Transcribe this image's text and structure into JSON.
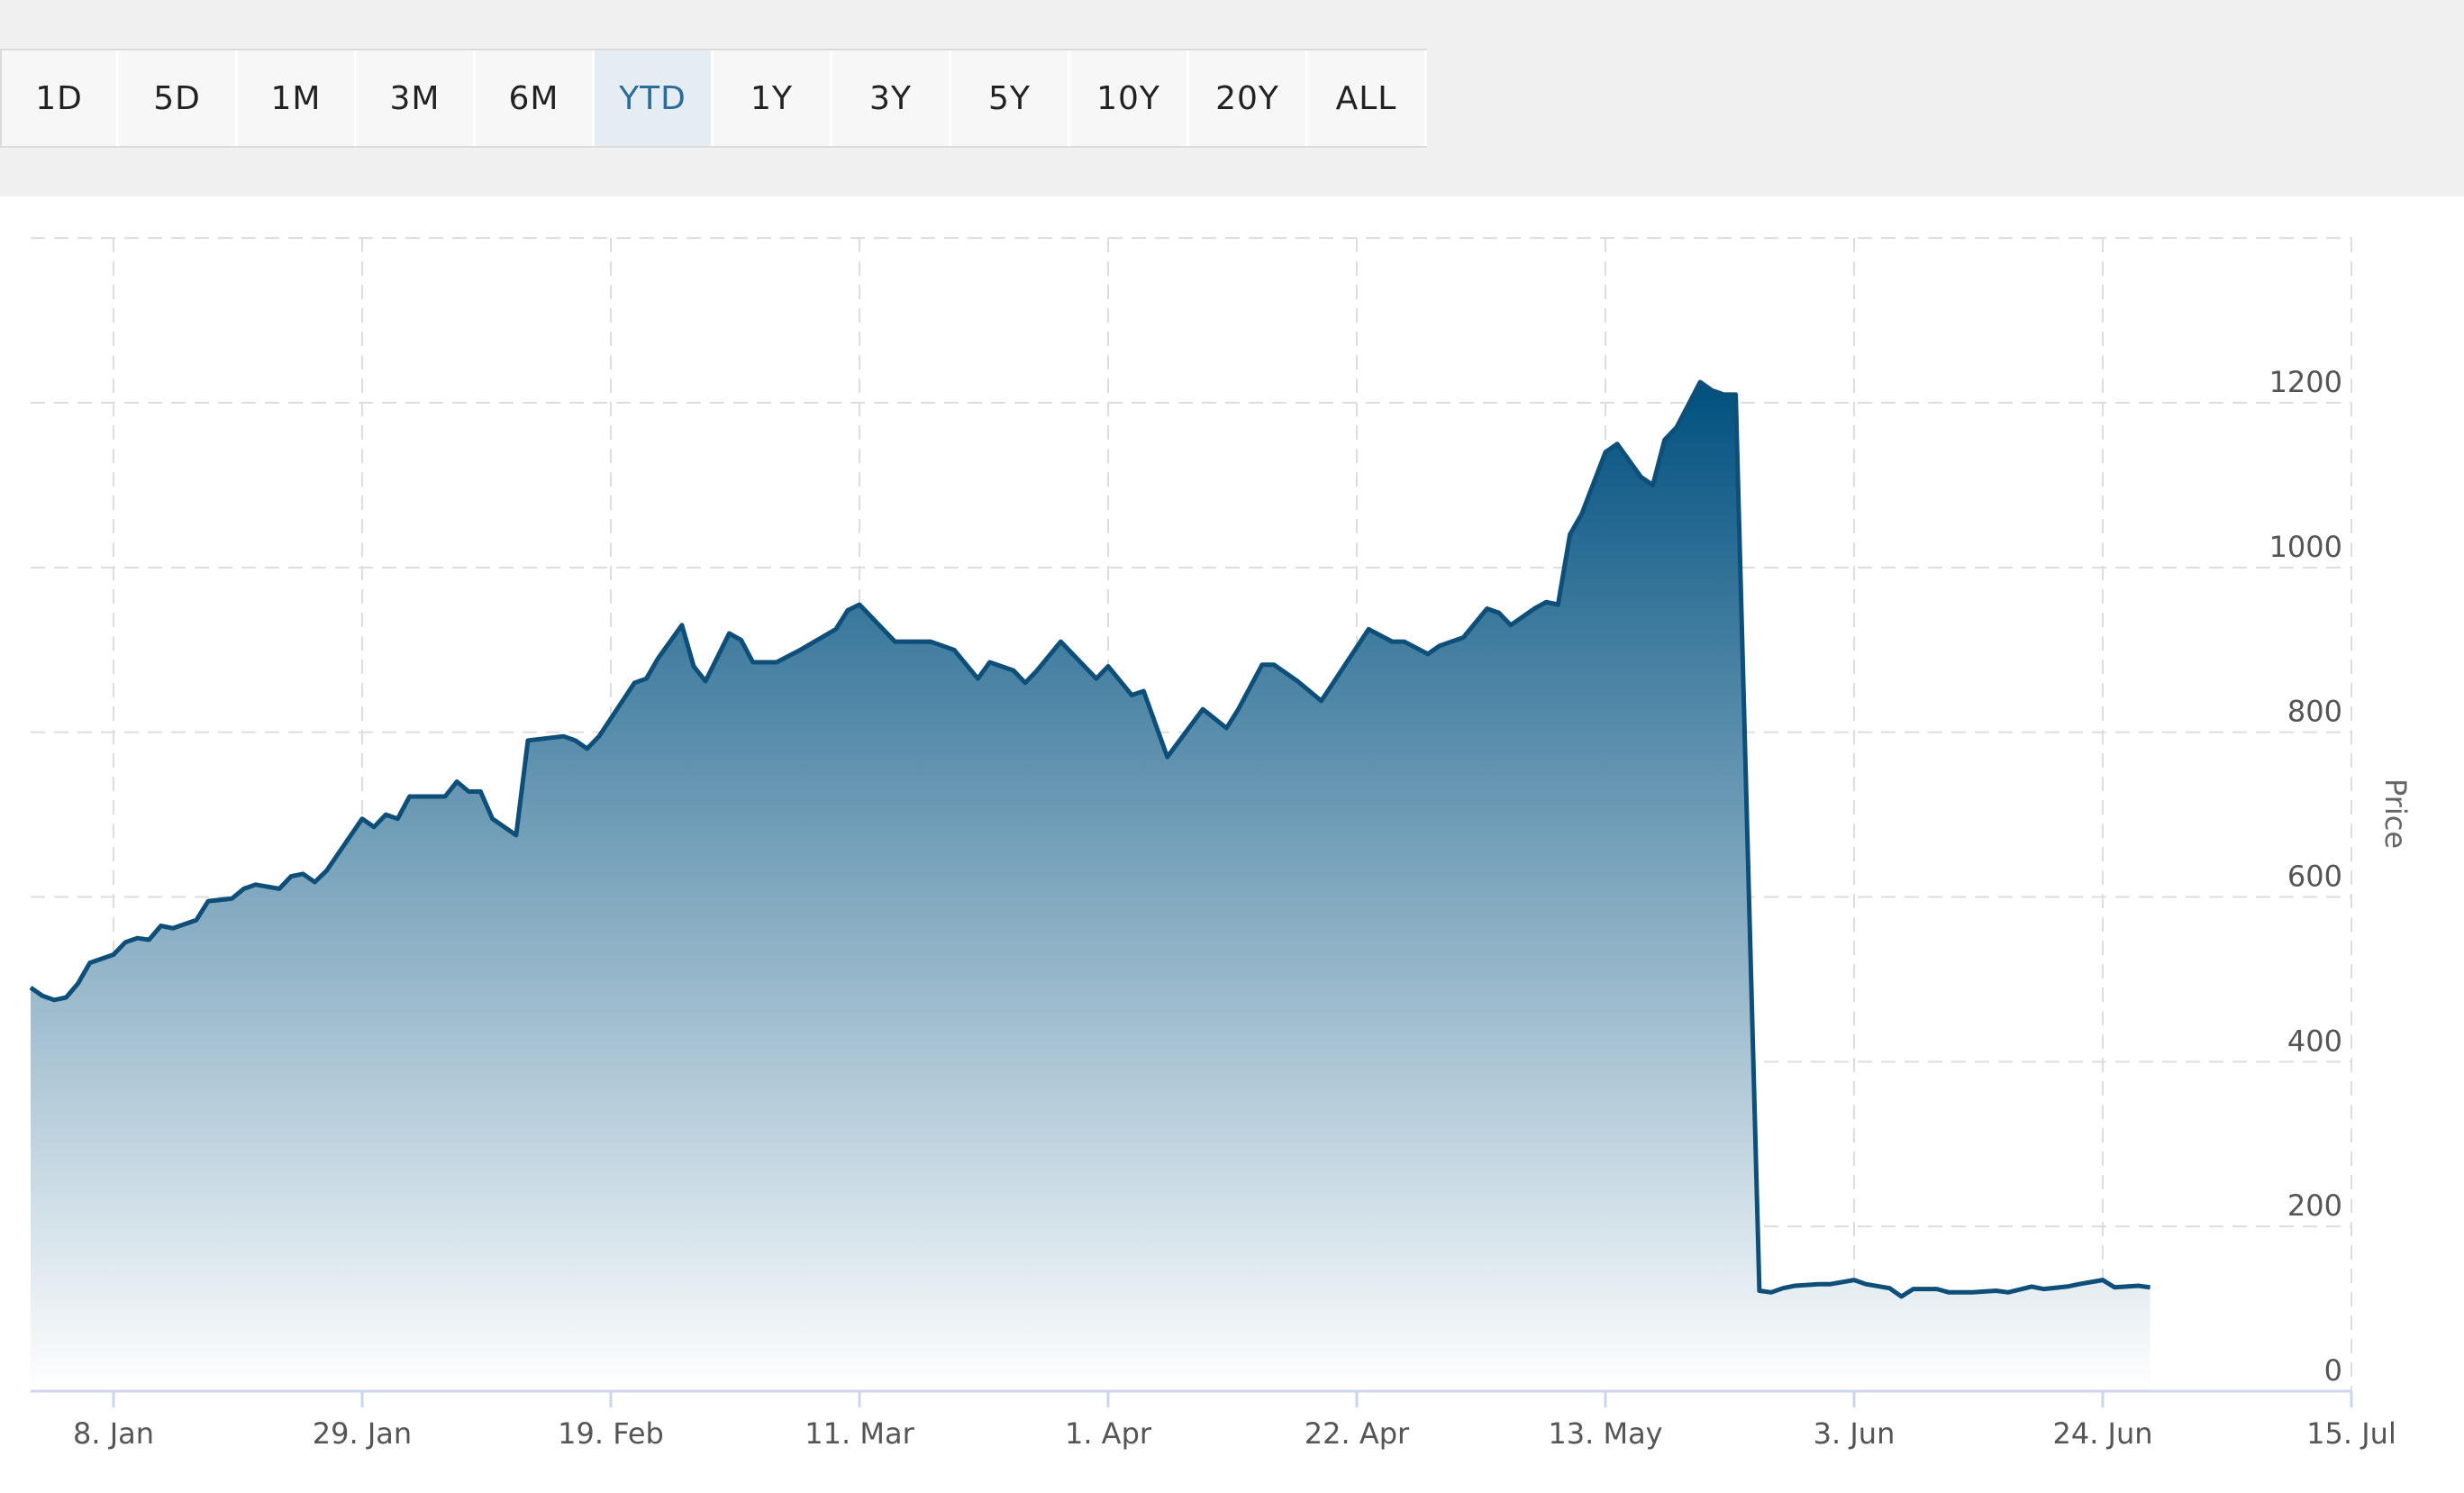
{
  "range_selector": {
    "buttons": [
      "1D",
      "5D",
      "1M",
      "3M",
      "6M",
      "YTD",
      "1Y",
      "3Y",
      "5Y",
      "10Y",
      "20Y",
      "ALL"
    ],
    "active": "YTD"
  },
  "colors": {
    "line": "#0d4f78",
    "fill_top": "#00507f",
    "fill_bottom": "#ffffff",
    "grid": "#dddddd",
    "active_button": "#2a6d98"
  },
  "chart_data": {
    "type": "area",
    "title": "",
    "xlabel": "",
    "ylabel": "Price",
    "ylim": [
      0,
      1400
    ],
    "yticks": [
      0,
      200,
      400,
      600,
      800,
      1000,
      1200
    ],
    "xdomain": [
      "2024-01-01",
      "2024-07-15"
    ],
    "xticks": [
      {
        "date": "2024-01-08",
        "label": "8. Jan"
      },
      {
        "date": "2024-01-29",
        "label": "29. Jan"
      },
      {
        "date": "2024-02-19",
        "label": "19. Feb"
      },
      {
        "date": "2024-03-11",
        "label": "11. Mar"
      },
      {
        "date": "2024-04-01",
        "label": "1. Apr"
      },
      {
        "date": "2024-04-22",
        "label": "22. Apr"
      },
      {
        "date": "2024-05-13",
        "label": "13. May"
      },
      {
        "date": "2024-06-03",
        "label": "3. Jun"
      },
      {
        "date": "2024-06-24",
        "label": "24. Jun"
      },
      {
        "date": "2024-07-15",
        "label": "15. Jul"
      }
    ],
    "grid": true,
    "series": [
      {
        "points": [
          [
            "2024-01-01",
            490
          ],
          [
            "2024-01-02",
            480
          ],
          [
            "2024-01-03",
            475
          ],
          [
            "2024-01-04",
            478
          ],
          [
            "2024-01-05",
            495
          ],
          [
            "2024-01-06",
            520
          ],
          [
            "2024-01-08",
            530
          ],
          [
            "2024-01-09",
            545
          ],
          [
            "2024-01-10",
            550
          ],
          [
            "2024-01-11",
            548
          ],
          [
            "2024-01-12",
            565
          ],
          [
            "2024-01-13",
            562
          ],
          [
            "2024-01-15",
            572
          ],
          [
            "2024-01-16",
            595
          ],
          [
            "2024-01-18",
            598
          ],
          [
            "2024-01-19",
            610
          ],
          [
            "2024-01-20",
            615
          ],
          [
            "2024-01-22",
            610
          ],
          [
            "2024-01-23",
            625
          ],
          [
            "2024-01-24",
            628
          ],
          [
            "2024-01-25",
            618
          ],
          [
            "2024-01-26",
            632
          ],
          [
            "2024-01-29",
            695
          ],
          [
            "2024-01-30",
            685
          ],
          [
            "2024-01-31",
            700
          ],
          [
            "2024-02-01",
            695
          ],
          [
            "2024-02-02",
            722
          ],
          [
            "2024-02-05",
            722
          ],
          [
            "2024-02-06",
            740
          ],
          [
            "2024-02-07",
            728
          ],
          [
            "2024-02-08",
            728
          ],
          [
            "2024-02-09",
            695
          ],
          [
            "2024-02-11",
            675
          ],
          [
            "2024-02-12",
            790
          ],
          [
            "2024-02-15",
            795
          ],
          [
            "2024-02-16",
            790
          ],
          [
            "2024-02-17",
            780
          ],
          [
            "2024-02-18",
            795
          ],
          [
            "2024-02-21",
            860
          ],
          [
            "2024-02-22",
            865
          ],
          [
            "2024-02-23",
            890
          ],
          [
            "2024-02-25",
            930
          ],
          [
            "2024-02-26",
            880
          ],
          [
            "2024-02-27",
            862
          ],
          [
            "2024-02-29",
            920
          ],
          [
            "2024-03-01",
            912
          ],
          [
            "2024-03-02",
            885
          ],
          [
            "2024-03-04",
            885
          ],
          [
            "2024-03-06",
            900
          ],
          [
            "2024-03-09",
            925
          ],
          [
            "2024-03-10",
            948
          ],
          [
            "2024-03-11",
            955
          ],
          [
            "2024-03-14",
            910
          ],
          [
            "2024-03-17",
            910
          ],
          [
            "2024-03-18",
            905
          ],
          [
            "2024-03-19",
            900
          ],
          [
            "2024-03-21",
            865
          ],
          [
            "2024-03-22",
            885
          ],
          [
            "2024-03-24",
            875
          ],
          [
            "2024-03-25",
            860
          ],
          [
            "2024-03-26",
            875
          ],
          [
            "2024-03-28",
            910
          ],
          [
            "2024-03-31",
            865
          ],
          [
            "2024-04-01",
            880
          ],
          [
            "2024-04-03",
            845
          ],
          [
            "2024-04-04",
            850
          ],
          [
            "2024-04-06",
            770
          ],
          [
            "2024-04-09",
            828
          ],
          [
            "2024-04-11",
            805
          ],
          [
            "2024-04-12",
            828
          ],
          [
            "2024-04-14",
            882
          ],
          [
            "2024-04-15",
            882
          ],
          [
            "2024-04-17",
            862
          ],
          [
            "2024-04-19",
            838
          ],
          [
            "2024-04-23",
            925
          ],
          [
            "2024-04-25",
            910
          ],
          [
            "2024-04-26",
            910
          ],
          [
            "2024-04-28",
            895
          ],
          [
            "2024-04-29",
            905
          ],
          [
            "2024-05-01",
            915
          ],
          [
            "2024-05-03",
            950
          ],
          [
            "2024-05-04",
            945
          ],
          [
            "2024-05-05",
            930
          ],
          [
            "2024-05-07",
            950
          ],
          [
            "2024-05-08",
            958
          ],
          [
            "2024-05-09",
            955
          ],
          [
            "2024-05-10",
            1040
          ],
          [
            "2024-05-11",
            1065
          ],
          [
            "2024-05-13",
            1140
          ],
          [
            "2024-05-14",
            1150
          ],
          [
            "2024-05-16",
            1110
          ],
          [
            "2024-05-17",
            1100
          ],
          [
            "2024-05-18",
            1155
          ],
          [
            "2024-05-19",
            1170
          ],
          [
            "2024-05-21",
            1225
          ],
          [
            "2024-05-22",
            1215
          ],
          [
            "2024-05-23",
            1210
          ],
          [
            "2024-05-24",
            1210
          ],
          [
            "2024-05-26",
            122
          ],
          [
            "2024-05-27",
            120
          ],
          [
            "2024-05-28",
            125
          ],
          [
            "2024-05-29",
            128
          ],
          [
            "2024-05-31",
            130
          ],
          [
            "2024-06-01",
            130
          ],
          [
            "2024-06-03",
            135
          ],
          [
            "2024-06-04",
            130
          ],
          [
            "2024-06-06",
            125
          ],
          [
            "2024-06-07",
            115
          ],
          [
            "2024-06-08",
            124
          ],
          [
            "2024-06-10",
            124
          ],
          [
            "2024-06-11",
            120
          ],
          [
            "2024-06-13",
            120
          ],
          [
            "2024-06-15",
            122
          ],
          [
            "2024-06-16",
            120
          ],
          [
            "2024-06-18",
            127
          ],
          [
            "2024-06-19",
            124
          ],
          [
            "2024-06-21",
            127
          ],
          [
            "2024-06-22",
            130
          ],
          [
            "2024-06-24",
            135
          ],
          [
            "2024-06-25",
            126
          ],
          [
            "2024-06-27",
            128
          ],
          [
            "2024-06-28",
            126
          ]
        ]
      }
    ]
  }
}
